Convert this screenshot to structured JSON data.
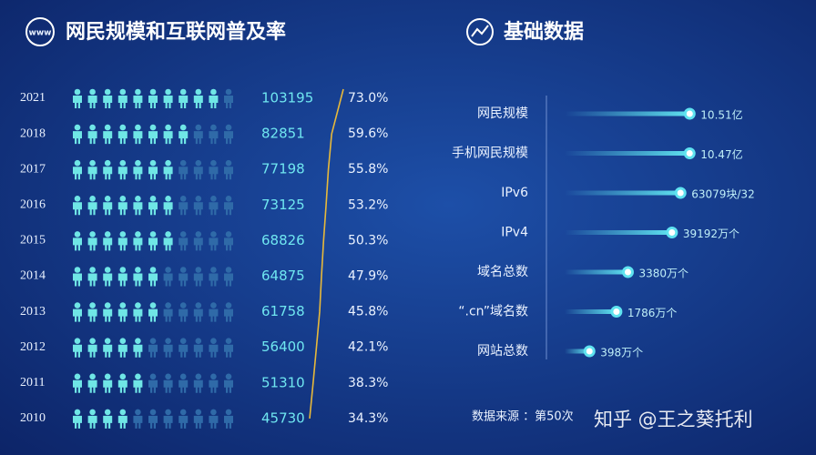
{
  "chart_data": [
    {
      "type": "pictogram",
      "title": "网民规模和互联网普及率",
      "icon_text": "www",
      "categories": [
        "2021",
        "2018",
        "2017",
        "2016",
        "2015",
        "2014",
        "2013",
        "2012",
        "2011",
        "2010"
      ],
      "series": [
        {
          "color": "#6fe6e6",
          "values": [
            103195,
            82851,
            77198,
            73125,
            68826,
            64875,
            61758,
            56400,
            51310,
            45730
          ]
        },
        {
          "color": "#e8b93a",
          "values": [
            73.0,
            59.6,
            55.8,
            53.2,
            50.3,
            47.9,
            45.8,
            42.1,
            38.3,
            34.3
          ],
          "value_labels": [
            "73.0%",
            "59.6%",
            "55.8%",
            "53.2%",
            "50.3%",
            "47.9%",
            "45.8%",
            "42.1%",
            "38.3%",
            "34.3%"
          ]
        }
      ]
    },
    {
      "type": "bar",
      "title": "基础数据",
      "orientation": "horizontal",
      "color": "#5fe3f0",
      "categories": [
        "网民规模",
        "手机网民规模",
        "IPv6",
        "IPv4",
        "域名总数",
        "“.cn”域名数",
        "网站总数"
      ],
      "values": [
        105100,
        104700,
        63079,
        39192,
        3380,
        1786,
        398
      ],
      "value_labels": [
        "10.51亿",
        "10.47亿",
        "63079块/32",
        "39192万个",
        "3380万个",
        "1786万个",
        "398万个"
      ],
      "xscale": "log",
      "xlim": [
        100,
        200000
      ]
    }
  ],
  "source": "数据来源 ：第50次",
  "watermark": "知乎 @王之葵托利"
}
